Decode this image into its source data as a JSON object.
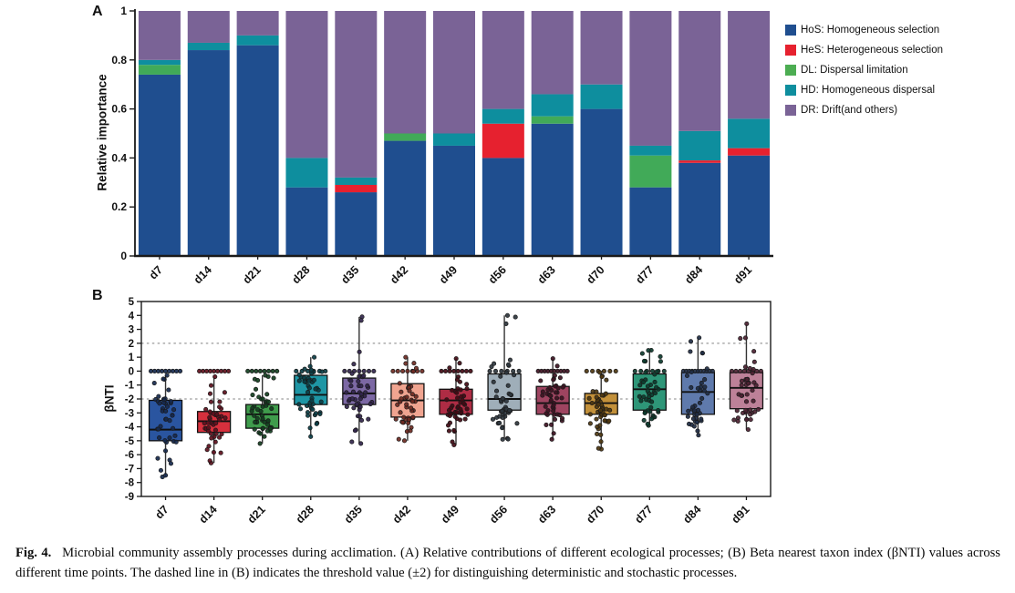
{
  "figure": {
    "panel_a_label": "A",
    "panel_b_label": "B"
  },
  "legend": {
    "items": [
      {
        "label": "HoS: Homogeneous selection",
        "color": "#1F4E8F"
      },
      {
        "label": "HeS: Heterogeneous selection",
        "color": "#E6212F"
      },
      {
        "label": "DL: Dispersal limitation",
        "color": "#4CAD52"
      },
      {
        "label": "HD: Homogeneous dispersal",
        "color": "#0E8E9E"
      },
      {
        "label": "DR: Drift(and others)",
        "color": "#7A6396"
      }
    ]
  },
  "caption": {
    "label": "Fig. 4.",
    "text": "Microbial community assembly processes during acclimation. (A) Relative contributions of different ecological processes; (B) Beta nearest taxon index (βNTI) values across different time points. The dashed line in (B) indicates the threshold value (±2) for distinguishing deterministic and stochastic processes."
  },
  "chart_data": [
    {
      "id": "A",
      "type": "bar",
      "subtype": "stacked",
      "ylabel": "Relative importance",
      "ylim": [
        0,
        1
      ],
      "ytick_values": [
        0,
        0.2,
        0.4,
        0.6,
        0.8,
        1
      ],
      "ytick_labels": [
        "0",
        "0.2",
        "0.4",
        "0.6",
        "0.8",
        "1"
      ],
      "categories": [
        "d7",
        "d14",
        "d21",
        "d28",
        "d35",
        "d42",
        "d49",
        "d56",
        "d63",
        "d70",
        "d77",
        "d84",
        "d91"
      ],
      "series": [
        {
          "name": "HoS: Homogeneous selection",
          "color": "#1F4E8F",
          "values": [
            0.74,
            0.84,
            0.86,
            0.28,
            0.26,
            0.47,
            0.45,
            0.4,
            0.54,
            0.6,
            0.28,
            0.38,
            0.41
          ]
        },
        {
          "name": "HeS: Heterogeneous selection",
          "color": "#E6212F",
          "values": [
            0,
            0,
            0,
            0,
            0.03,
            0,
            0,
            0.14,
            0,
            0,
            0,
            0.01,
            0.03
          ]
        },
        {
          "name": "DL: Dispersal limitation",
          "color": "#41AA58",
          "values": [
            0.04,
            0,
            0,
            0,
            0,
            0.03,
            0,
            0,
            0.03,
            0,
            0.13,
            0,
            0
          ]
        },
        {
          "name": "HD: Homogeneous dispersal",
          "color": "#0E8E9E",
          "values": [
            0.02,
            0.03,
            0.04,
            0.12,
            0.03,
            0,
            0.05,
            0.06,
            0.09,
            0.1,
            0.04,
            0.12,
            0.12
          ]
        },
        {
          "name": "DR: Drift(and others)",
          "color": "#7A6396",
          "values": [
            0.2,
            0.13,
            0.1,
            0.6,
            0.68,
            0.5,
            0.5,
            0.4,
            0.34,
            0.3,
            0.55,
            0.49,
            0.44
          ]
        }
      ],
      "legend_position": "right",
      "grid": false
    },
    {
      "id": "B",
      "type": "box",
      "ylabel": "βNTI",
      "ylim": [
        -9,
        5
      ],
      "ytick_values": [
        5,
        4,
        3,
        2,
        1,
        0,
        -1,
        -2,
        -3,
        -4,
        -5,
        -6,
        -7,
        -8,
        -9
      ],
      "threshold_lines": [
        2,
        -2
      ],
      "threshold_note": "dashed lines mark ±2",
      "categories": [
        "d7",
        "d14",
        "d21",
        "d28",
        "d35",
        "d42",
        "d49",
        "d56",
        "d63",
        "d70",
        "d77",
        "d84",
        "d91"
      ],
      "groups": [
        {
          "label": "d7",
          "box_color": "#2A55A0",
          "point_color": "#16294E",
          "q1": -5.0,
          "median": -4.2,
          "q3": -2.1,
          "whisker_low": -7.6,
          "whisker_high": -0.3,
          "zero_points": 9,
          "n_points": 54
        },
        {
          "label": "d14",
          "box_color": "#D6303D",
          "point_color": "#5E0F1C",
          "q1": -4.4,
          "median": -3.6,
          "q3": -2.9,
          "whisker_low": -6.6,
          "whisker_high": -0.4,
          "zero_points": 9,
          "n_points": 54
        },
        {
          "label": "d21",
          "box_color": "#3F9C4C",
          "point_color": "#123F20",
          "q1": -4.1,
          "median": -3.1,
          "q3": -2.4,
          "whisker_low": -5.2,
          "whisker_high": -0.3,
          "zero_points": 8,
          "n_points": 54
        },
        {
          "label": "d28",
          "box_color": "#1E96A5",
          "point_color": "#0A3E46",
          "q1": -2.4,
          "median": -1.7,
          "q3": -0.3,
          "whisker_low": -4.7,
          "whisker_high": 1.0,
          "zero_points": 6,
          "n_points": 52
        },
        {
          "label": "d35",
          "box_color": "#7C68A4",
          "point_color": "#32254C",
          "q1": -2.4,
          "median": -1.6,
          "q3": -0.5,
          "whisker_low": -5.2,
          "whisker_high": 3.9,
          "zero_points": 7,
          "n_points": 54
        },
        {
          "label": "d42",
          "box_color": "#F0A490",
          "point_color": "#6E2A22",
          "q1": -3.3,
          "median": -2.1,
          "q3": -0.9,
          "whisker_low": -5.0,
          "whisker_high": 1.0,
          "zero_points": 7,
          "n_points": 54
        },
        {
          "label": "d49",
          "box_color": "#AE2C44",
          "point_color": "#430A14",
          "q1": -3.1,
          "median": -2.1,
          "q3": -1.3,
          "whisker_low": -5.3,
          "whisker_high": 0.9,
          "zero_points": 8,
          "n_points": 56
        },
        {
          "label": "d56",
          "box_color": "#9FAEB9",
          "point_color": "#2C353D",
          "q1": -2.8,
          "median": -2.0,
          "q3": -0.2,
          "whisker_low": -4.9,
          "whisker_high": 4.0,
          "zero_points": 6,
          "n_points": 54
        },
        {
          "label": "d63",
          "box_color": "#9E4460",
          "point_color": "#3E1222",
          "q1": -3.1,
          "median": -2.3,
          "q3": -1.1,
          "whisker_low": -4.9,
          "whisker_high": 0.9,
          "zero_points": 10,
          "n_points": 56
        },
        {
          "label": "d70",
          "box_color": "#C2903A",
          "point_color": "#4E3710",
          "q1": -3.1,
          "median": -2.3,
          "q3": -1.6,
          "whisker_low": -5.6,
          "whisker_high": -0.1,
          "zero_points": 6,
          "n_points": 54
        },
        {
          "label": "d77",
          "box_color": "#2E9678",
          "point_color": "#0C3C2E",
          "q1": -2.8,
          "median": -1.3,
          "q3": -0.2,
          "whisker_low": -3.9,
          "whisker_high": 1.5,
          "zero_points": 6,
          "n_points": 52
        },
        {
          "label": "d84",
          "box_color": "#5F7AAC",
          "point_color": "#1F2C44",
          "q1": -3.1,
          "median": -1.5,
          "q3": -0.1,
          "whisker_low": -4.6,
          "whisker_high": 2.4,
          "zero_points": 11,
          "n_points": 54
        },
        {
          "label": "d91",
          "box_color": "#BD8198",
          "point_color": "#4C2232",
          "q1": -2.7,
          "median": -1.2,
          "q3": -0.1,
          "whisker_low": -4.2,
          "whisker_high": 3.4,
          "zero_points": 8,
          "n_points": 52
        }
      ],
      "grid": false
    }
  ]
}
